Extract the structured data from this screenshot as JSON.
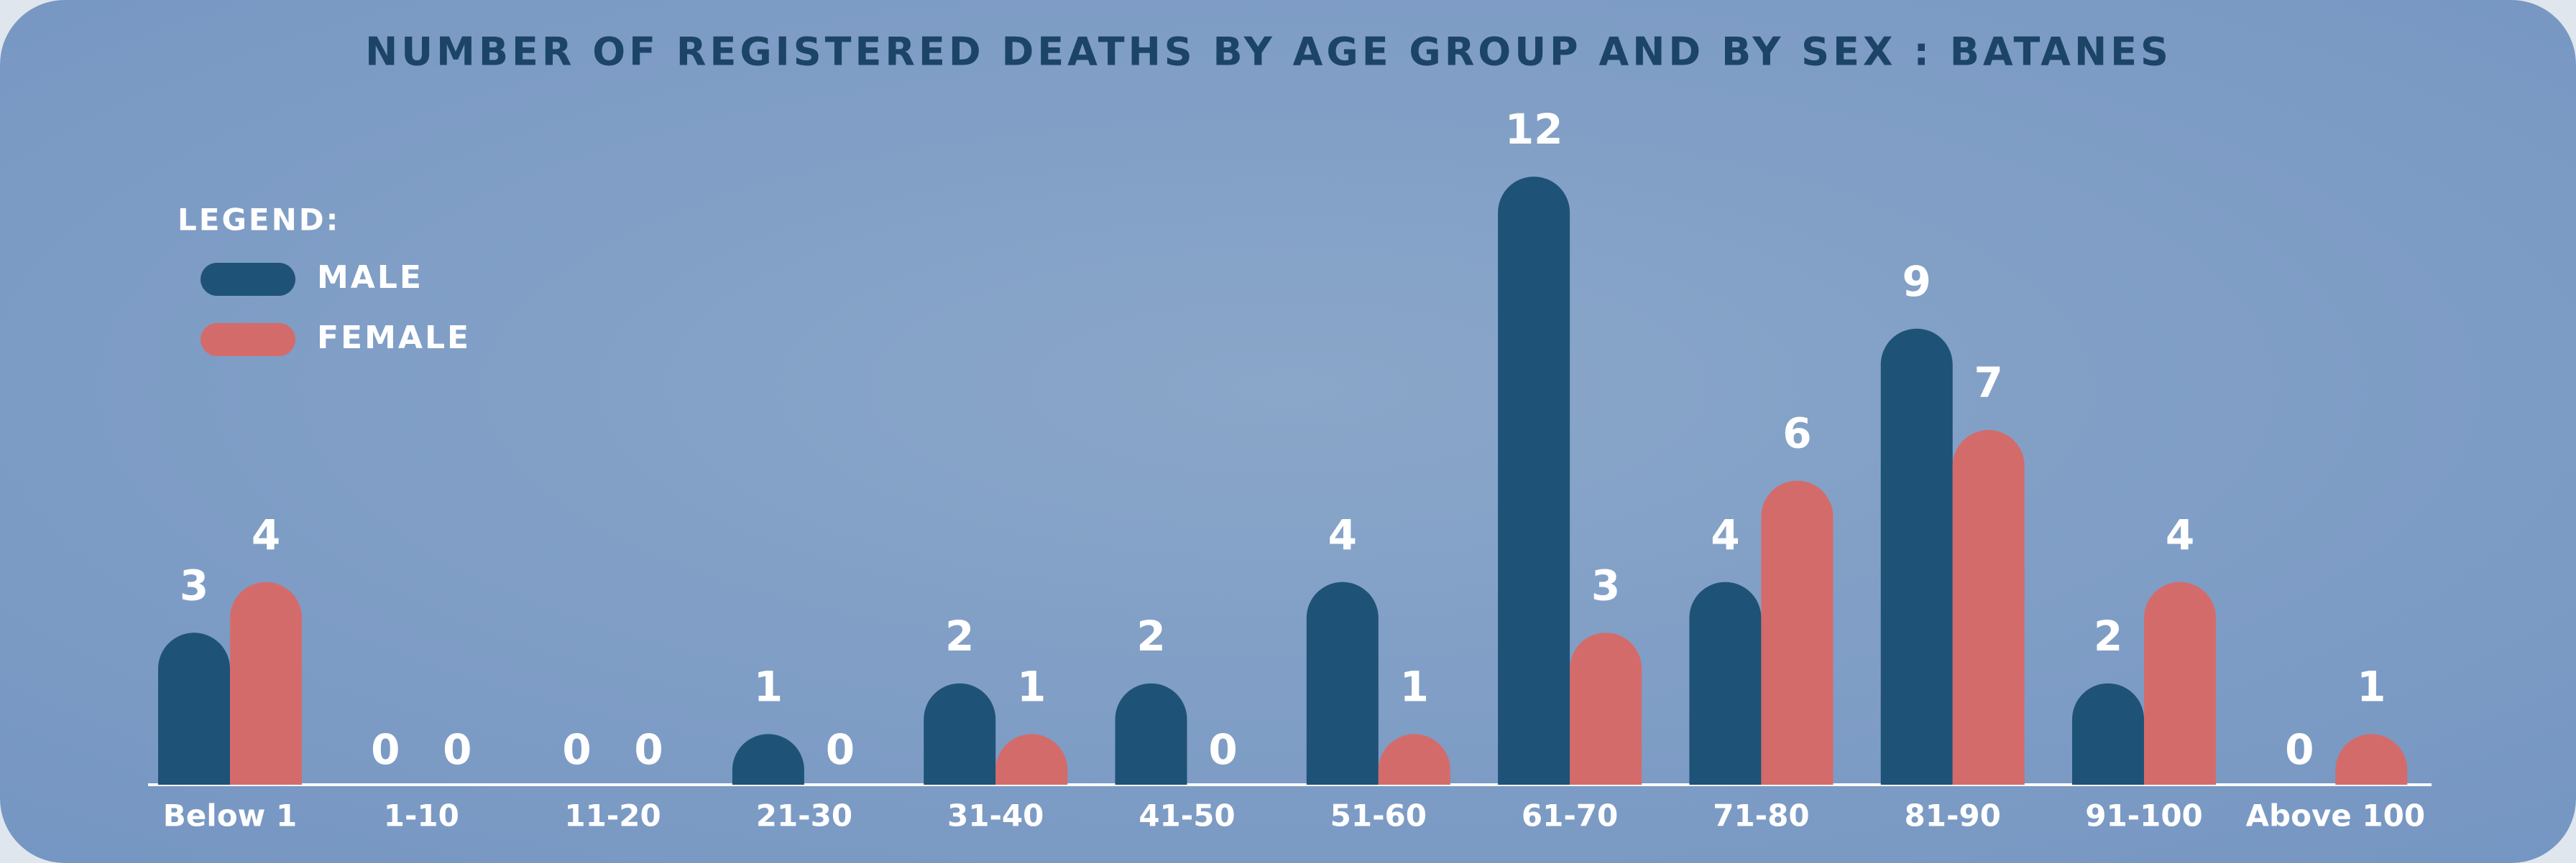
{
  "chart_data": {
    "type": "bar",
    "title": "NUMBER OF REGISTERED DEATHS BY AGE GROUP AND BY SEX : BATANES",
    "legend_title": "LEGEND:",
    "categories": [
      "Below 1",
      "1-10",
      "11-20",
      "21-30",
      "31-40",
      "41-50",
      "51-60",
      "61-70",
      "71-80",
      "81-90",
      "91-100",
      "Above 100"
    ],
    "series": [
      {
        "name": "MALE",
        "color": "#1f5277",
        "values": [
          3,
          0,
          0,
          1,
          2,
          2,
          4,
          12,
          4,
          9,
          2,
          0
        ]
      },
      {
        "name": "FEMALE",
        "color": "#d46b6b",
        "values": [
          4,
          0,
          0,
          0,
          1,
          0,
          1,
          3,
          6,
          7,
          4,
          1
        ]
      }
    ],
    "legend": "top-left"
  }
}
